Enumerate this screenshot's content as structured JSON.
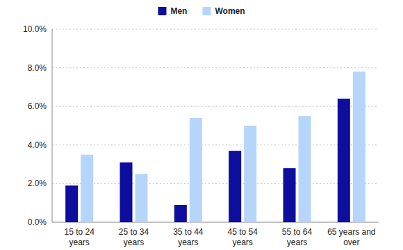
{
  "chart_data": {
    "type": "bar",
    "categories": [
      "15 to 24 years",
      "25 to 34 years",
      "35 to 44 years",
      "45 to 54 years",
      "55 to 64 years",
      "65 years and over"
    ],
    "series": [
      {
        "name": "Men",
        "color": "#0d0d9e",
        "values": [
          1.9,
          3.1,
          0.9,
          3.7,
          2.8,
          6.4
        ]
      },
      {
        "name": "Women",
        "color": "#b5d5fb",
        "values": [
          3.5,
          2.5,
          5.4,
          5.0,
          5.5,
          7.8
        ]
      }
    ],
    "ylim": [
      0,
      10
    ],
    "yticks": [
      {
        "value": 0,
        "label": "0.0%"
      },
      {
        "value": 2,
        "label": "2.0%"
      },
      {
        "value": 4,
        "label": "4.0%"
      },
      {
        "value": 6,
        "label": "6.0%"
      },
      {
        "value": 8,
        "label": "8.0%"
      },
      {
        "value": 10,
        "label": "10.0%"
      }
    ],
    "grid": true,
    "legend": "top"
  }
}
